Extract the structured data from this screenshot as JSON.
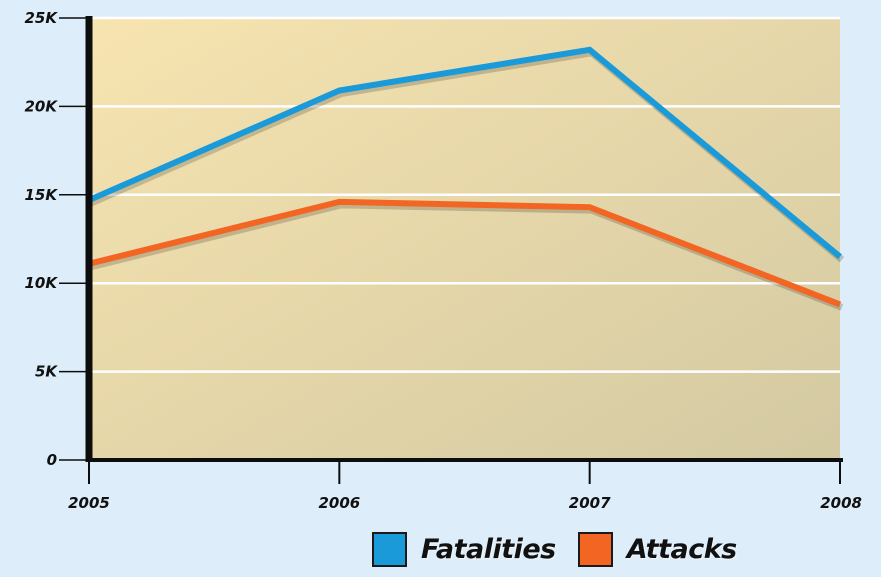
{
  "chart_data": {
    "type": "line",
    "title": "",
    "xlabel": "",
    "ylabel": "",
    "categories": [
      "2005",
      "2006",
      "2007",
      "2008"
    ],
    "ylim": [
      0,
      25000
    ],
    "y_ticks": [
      {
        "value": 0,
        "label": "0"
      },
      {
        "value": 5000,
        "label": "5K"
      },
      {
        "value": 10000,
        "label": "10K"
      },
      {
        "value": 15000,
        "label": "15K"
      },
      {
        "value": 20000,
        "label": "20K"
      },
      {
        "value": 25000,
        "label": "25K"
      }
    ],
    "grid": true,
    "legend_position": "bottom-right",
    "series": [
      {
        "name": "Fatalities",
        "color": "#1a9ad9",
        "values": [
          14700,
          20900,
          23200,
          11500
        ]
      },
      {
        "name": "Attacks",
        "color": "#f26522",
        "values": [
          11100,
          14600,
          14300,
          8800
        ]
      }
    ]
  },
  "legend": {
    "fatalities_label": "Fatalities",
    "attacks_label": "Attacks"
  },
  "colors": {
    "plot_bg_left": "#f7e4b0",
    "plot_bg_right": "#d3c9a2",
    "page_bg": "#ddeefa",
    "axis": "#0d0d0d",
    "grid": "#ffffff"
  }
}
